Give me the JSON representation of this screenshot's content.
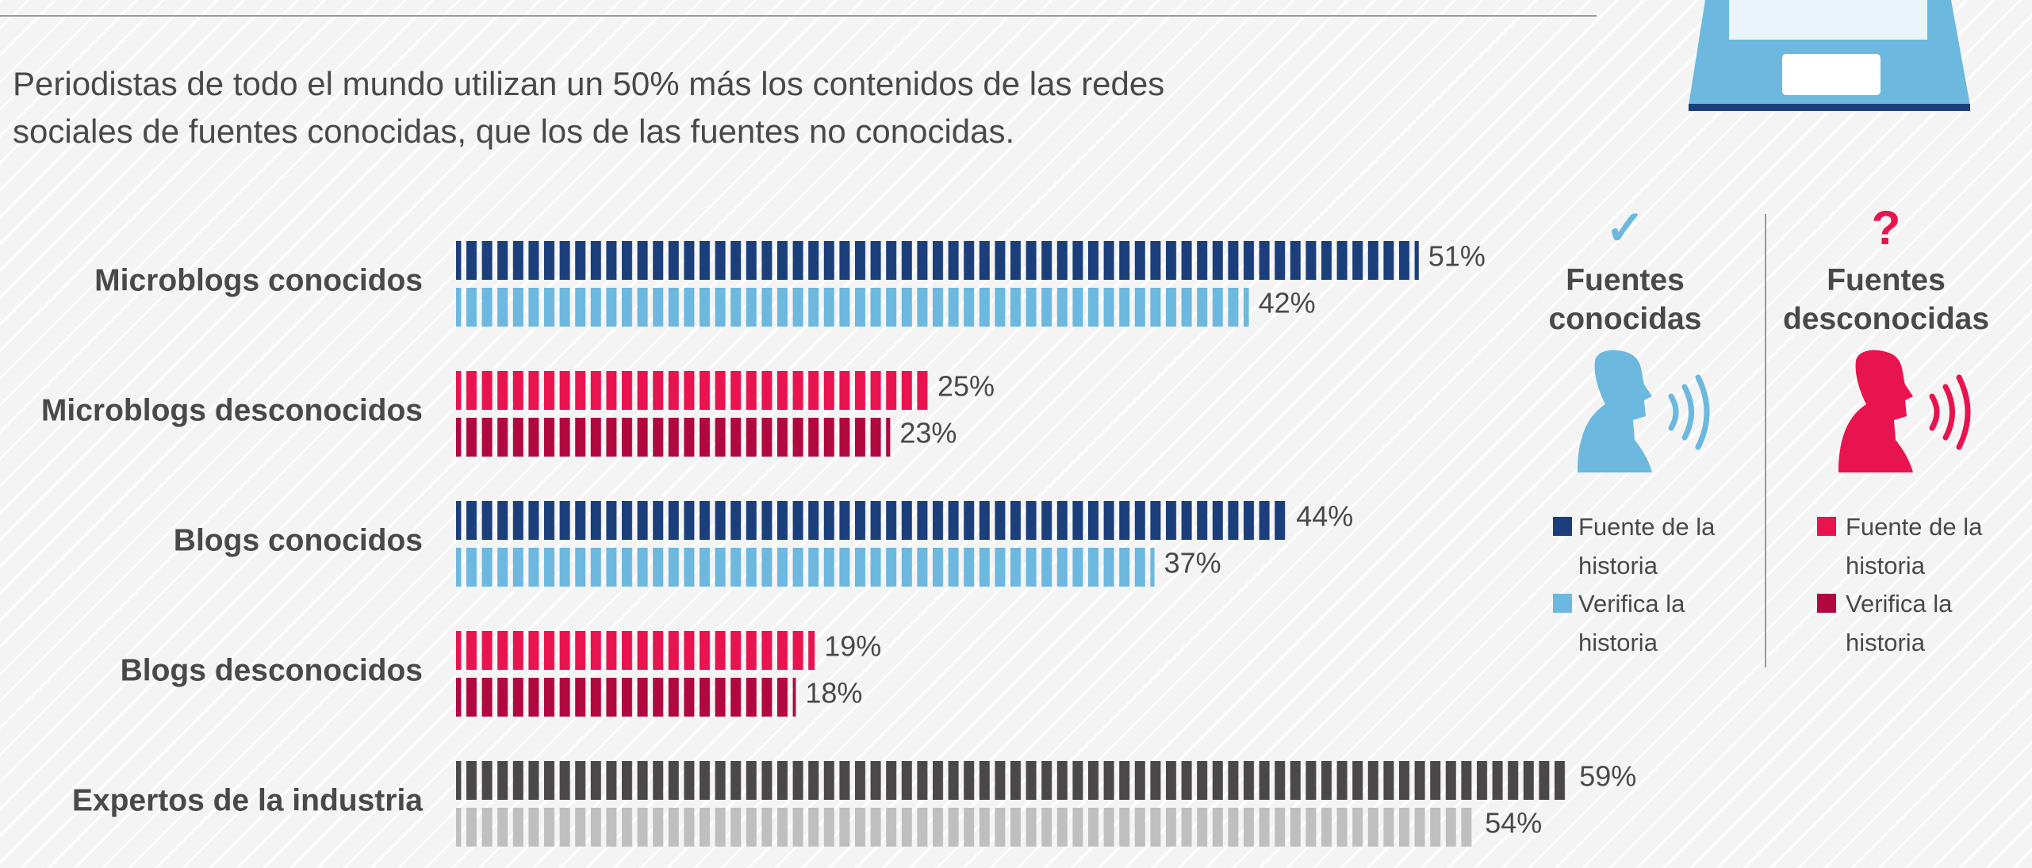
{
  "chart_data": {
    "type": "bar",
    "orientation": "horizontal",
    "subtitle": "Periodistas de todo el mundo utilizan un 50% más los contenidos de las redes sociales de fuentes conocidas, que los de las fuentes no conocidas.",
    "categories": [
      "Microblogs conocidos",
      "Microblogs desconocidos",
      "Blogs conocidos",
      "Blogs desconocidos",
      "Expertos de la industria"
    ],
    "series": [
      {
        "name": "Fuente de la historia",
        "values": [
          51,
          25,
          44,
          19,
          59
        ],
        "value_labels": [
          "51%",
          "25%",
          "44%",
          "19%",
          "59%"
        ],
        "colors": [
          "#1b3f7a",
          "#e8134f",
          "#1b3f7a",
          "#e8134f",
          "#4a4849"
        ]
      },
      {
        "name": "Verifica la historia",
        "values": [
          42,
          23,
          37,
          18,
          54
        ],
        "value_labels": [
          "42%",
          "23%",
          "37%",
          "18%",
          "54%"
        ],
        "colors": [
          "#6cb8de",
          "#b0083f",
          "#6cb8de",
          "#b0083f",
          "#bfbfbf"
        ]
      }
    ],
    "legend_groups": [
      {
        "icon": "✓",
        "icon_color": "#6cb8de",
        "title": "Fuentes conocidas",
        "person_color": "#6cb8de",
        "items": [
          {
            "label": "Fuente de la historia",
            "color": "#1b3f7a"
          },
          {
            "label": "Verifica la historia",
            "color": "#6cb8de"
          }
        ]
      },
      {
        "icon": "?",
        "icon_color": "#e8134f",
        "title": "Fuentes desconocidas",
        "person_color": "#e8134f",
        "items": [
          {
            "label": "Fuente de la historia",
            "color": "#e8134f"
          },
          {
            "label": "Verifica la historia",
            "color": "#b0083f"
          }
        ]
      }
    ]
  }
}
